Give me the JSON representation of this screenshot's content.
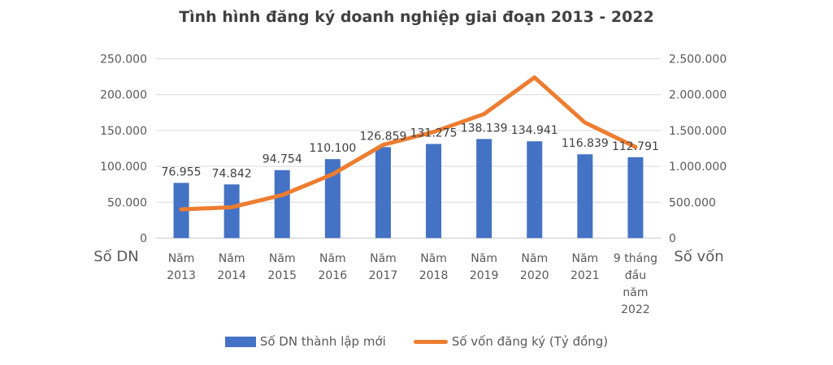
{
  "title": "Tình hình đăng ký doanh nghiệp giai đoạn 2013 - 2022",
  "chart_data": {
    "type": "combo-bar-line",
    "title": "Tình hình đăng ký doanh nghiệp giai đoạn 2013 - 2022",
    "categories": [
      "Năm 2013",
      "Năm 2014",
      "Năm 2015",
      "Năm 2016",
      "Năm 2017",
      "Năm 2018",
      "Năm 2019",
      "Năm 2020",
      "Năm 2021",
      "9 tháng đầu năm 2022"
    ],
    "category_lines": [
      [
        "Năm",
        "2013"
      ],
      [
        "Năm",
        "2014"
      ],
      [
        "Năm",
        "2015"
      ],
      [
        "Năm",
        "2016"
      ],
      [
        "Năm",
        "2017"
      ],
      [
        "Năm",
        "2018"
      ],
      [
        "Năm",
        "2019"
      ],
      [
        "Năm",
        "2020"
      ],
      [
        "Năm",
        "2021"
      ],
      [
        "9 tháng",
        "đầu",
        "năm",
        "2022"
      ]
    ],
    "series": [
      {
        "name": "Số DN thành lập mới",
        "type": "bar",
        "axis": "left",
        "color": "#4472C4",
        "values": [
          76955,
          74842,
          94754,
          110100,
          126859,
          131275,
          138139,
          134941,
          116839,
          112791
        ],
        "labels": [
          "76.955",
          "74.842",
          "94.754",
          "110.100",
          "126.859",
          "131.275",
          "138.139",
          "134.941",
          "116.839",
          "112.791"
        ]
      },
      {
        "name": "Số vốn đăng ký (Tỷ đồng)",
        "type": "line",
        "axis": "right",
        "color": "#ED7D31",
        "values_estimated_from_gridlines": true,
        "values": [
          400000,
          430000,
          600000,
          890000,
          1300000,
          1480000,
          1730000,
          2240000,
          1610000,
          1270000
        ]
      }
    ],
    "left_axis": {
      "title": "Số DN",
      "min": 0,
      "max": 250000,
      "tick_labels": [
        "0",
        "50.000",
        "100.000",
        "150.000",
        "200.000",
        "250.000"
      ]
    },
    "right_axis": {
      "title": "Số vốn",
      "min": 0,
      "max": 2500000,
      "tick_labels": [
        "0",
        "500.000",
        "1.000.000",
        "1.500.000",
        "2.000.000",
        "2.500.000"
      ]
    },
    "grid": true,
    "legend_position": "bottom",
    "colors": {
      "grid": "#D9D9D9",
      "axis_line": "#C9C9C9",
      "axis_text": "#595959",
      "data_label": "#404040",
      "title_text": "#404040",
      "background": "#FFFFFF"
    }
  }
}
